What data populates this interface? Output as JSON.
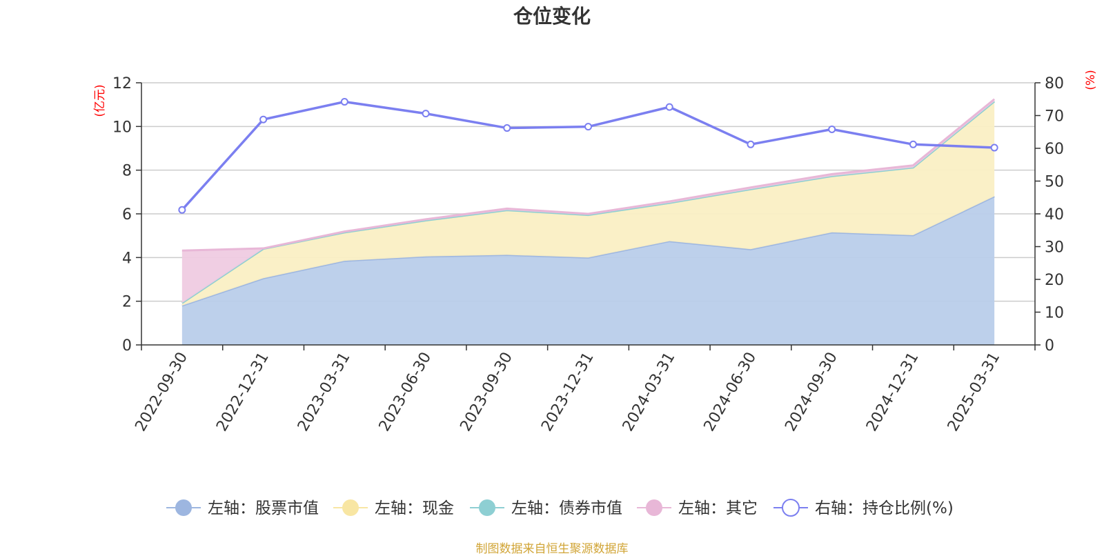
{
  "chart_data": {
    "type": "area",
    "title": "仓位变化",
    "categories": [
      "2022-09-30",
      "2022-12-31",
      "2023-03-31",
      "2023-06-30",
      "2023-09-30",
      "2023-12-31",
      "2024-03-31",
      "2024-06-30",
      "2024-09-30",
      "2024-12-31",
      "2025-03-31"
    ],
    "left_axis": {
      "unit": "(亿元)",
      "ylim": [
        0,
        12
      ],
      "ticks": [
        0,
        2,
        4,
        6,
        8,
        10,
        12
      ]
    },
    "right_axis": {
      "unit": "(%)",
      "ylim": [
        0,
        80
      ],
      "ticks": [
        0,
        10,
        20,
        30,
        40,
        50,
        60,
        70,
        80
      ]
    },
    "stacked": true,
    "grid": true,
    "legend_position": "bottom",
    "series": [
      {
        "name": "左轴：股票市值",
        "axis": "left",
        "kind": "area",
        "color": "#9db6e0",
        "fill": "#b9cdea",
        "values": [
          1.8,
          3.05,
          3.85,
          4.05,
          4.12,
          4.0,
          4.75,
          4.38,
          5.15,
          5.02,
          6.8
        ]
      },
      {
        "name": "左轴：现金",
        "axis": "left",
        "kind": "area",
        "color": "#f8e6a3",
        "fill": "#faefc4",
        "values": [
          0.12,
          1.35,
          1.3,
          1.65,
          2.05,
          1.95,
          1.75,
          2.75,
          2.58,
          3.1,
          4.35
        ]
      },
      {
        "name": "左轴：债券市值",
        "axis": "left",
        "kind": "area",
        "color": "#8ecfd3",
        "fill": "#8ecfd3",
        "values": [
          0,
          0,
          0,
          0,
          0,
          0,
          0,
          0,
          0,
          0,
          0
        ]
      },
      {
        "name": "左轴：其它",
        "axis": "left",
        "kind": "area",
        "color": "#e8b7d7",
        "fill": "#efcbe2",
        "values": [
          2.4,
          0.02,
          0.04,
          0.05,
          0.07,
          0.05,
          0.07,
          0.08,
          0.09,
          0.1,
          0.1
        ]
      },
      {
        "name": "右轴：持仓比例(%)",
        "axis": "right",
        "kind": "line",
        "color": "#7b7ff0",
        "values": [
          41.2,
          68.8,
          74.2,
          70.6,
          66.2,
          66.6,
          72.6,
          61.2,
          65.8,
          61.2,
          60.2
        ]
      }
    ]
  },
  "footer": {
    "source": "制图数据来自恒生聚源数据库"
  }
}
